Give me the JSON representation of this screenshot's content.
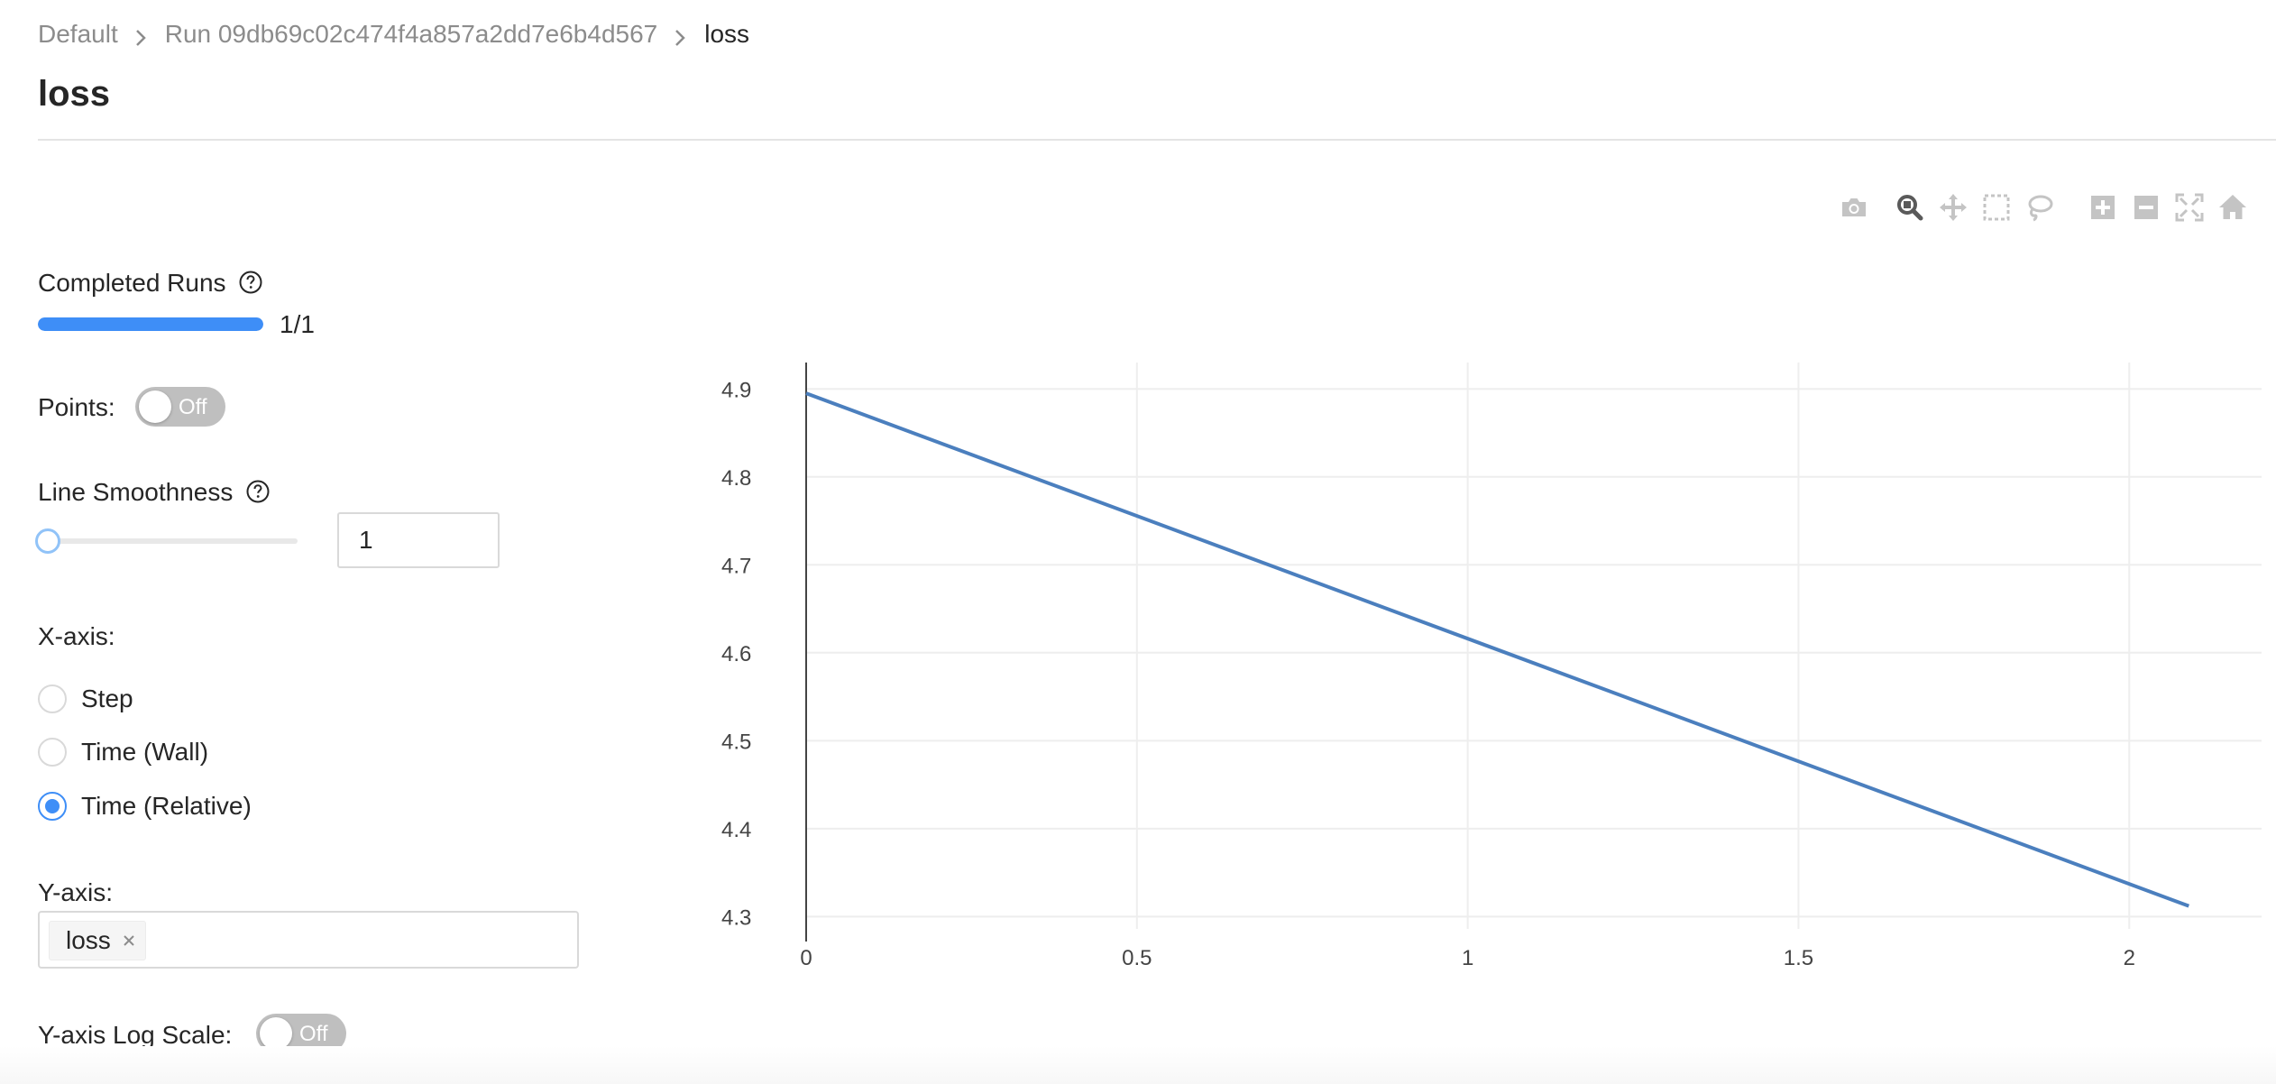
{
  "breadcrumb": {
    "items": [
      "Default",
      "Run 09db69c02c474f4a857a2dd7e6b4d567",
      "loss"
    ]
  },
  "page": {
    "title": "loss"
  },
  "controls": {
    "completed_runs": {
      "label": "Completed Runs",
      "progress": 1.0,
      "text": "1/1"
    },
    "points": {
      "label": "Points:",
      "toggle_text": "Off",
      "on": false
    },
    "line_smoothness": {
      "label": "Line Smoothness",
      "value": "1",
      "slider_value": 1
    },
    "x_axis": {
      "label": "X-axis:",
      "options": [
        "Step",
        "Time (Wall)",
        "Time (Relative)"
      ],
      "selected": "Time (Relative)"
    },
    "y_axis": {
      "label": "Y-axis:",
      "selected_tags": [
        "loss"
      ]
    },
    "y_log_scale": {
      "label": "Y-axis Log Scale:",
      "toggle_text": "Off",
      "on": false
    }
  },
  "modebar": {
    "icons": [
      "camera-icon",
      "zoom-icon",
      "pan-icon",
      "box-select-icon",
      "lasso-select-icon",
      "zoom-in-icon",
      "zoom-out-icon",
      "autoscale-icon",
      "reset-axes-icon"
    ]
  },
  "colors": {
    "accent": "#3e8ef7",
    "series_line": "#4b7fbe",
    "grid": "#eeeeee",
    "modebar_icon": "#c4c4c4"
  },
  "chart_data": {
    "type": "line",
    "title": "",
    "xlabel": "",
    "ylabel": "",
    "xlim": [
      0,
      2.2
    ],
    "ylim": [
      4.286,
      4.93
    ],
    "x_ticks": [
      "0",
      "0.5",
      "1",
      "1.5",
      "2"
    ],
    "y_ticks": [
      "4.3",
      "4.4",
      "4.5",
      "4.6",
      "4.7",
      "4.8",
      "4.9"
    ],
    "grid": true,
    "legend": "none",
    "series": [
      {
        "x": [
          0,
          2.09
        ],
        "y": [
          4.895,
          4.312
        ]
      }
    ]
  }
}
